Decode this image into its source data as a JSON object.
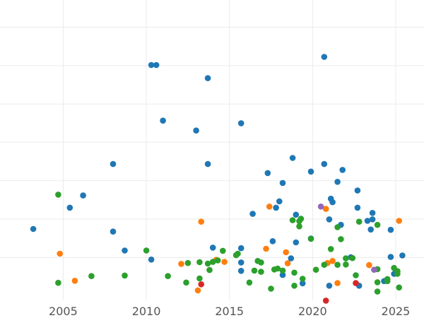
{
  "chart_data": {
    "type": "scatter",
    "title": "",
    "xlabel": "",
    "ylabel": "",
    "xlim": [
      2001.2,
      2026.7
    ],
    "ylim": [
      0,
      100
    ],
    "x_ticks": [
      2005,
      2010,
      2015,
      2020,
      2025
    ],
    "x_tick_labels": [
      "2005",
      "2010",
      "2015",
      "2020",
      "2025"
    ],
    "y_gridlines": [
      13.5,
      26.7,
      39.9,
      53.1,
      66.2,
      79.4,
      92.6
    ],
    "y_tick_labels_visible": false,
    "grid": true,
    "legend": "none",
    "series": [
      {
        "color": "#1f77b4",
        "points": [
          [
            2003.2,
            23.3
          ],
          [
            2005.4,
            30.6
          ],
          [
            2006.2,
            34.8
          ],
          [
            2008.0,
            22.4
          ],
          [
            2008.0,
            45.6
          ],
          [
            2008.7,
            15.9
          ],
          [
            2010.3,
            12.8
          ],
          [
            2010.3,
            79.6
          ],
          [
            2010.6,
            79.6
          ],
          [
            2011.0,
            60.5
          ],
          [
            2013.0,
            57.1
          ],
          [
            2013.7,
            45.6
          ],
          [
            2013.7,
            75.1
          ],
          [
            2014.0,
            16.9
          ],
          [
            2015.7,
            59.6
          ],
          [
            2015.7,
            8.9
          ],
          [
            2015.7,
            11.8
          ],
          [
            2015.7,
            16.7
          ],
          [
            2016.4,
            28.5
          ],
          [
            2017.3,
            42.5
          ],
          [
            2017.6,
            19.1
          ],
          [
            2017.8,
            30.6
          ],
          [
            2018.0,
            32.8
          ],
          [
            2018.2,
            39.1
          ],
          [
            2018.2,
            7.5
          ],
          [
            2018.7,
            13.2
          ],
          [
            2018.8,
            47.7
          ],
          [
            2019.0,
            18.7
          ],
          [
            2019.0,
            28.2
          ],
          [
            2019.4,
            4.6
          ],
          [
            2019.9,
            43.0
          ],
          [
            2019.9,
            20.0
          ],
          [
            2020.7,
            82.4
          ],
          [
            2020.7,
            45.6
          ],
          [
            2021.0,
            26.6
          ],
          [
            2021.0,
            3.8
          ],
          [
            2021.1,
            33.7
          ],
          [
            2021.2,
            32.5
          ],
          [
            2021.5,
            39.5
          ],
          [
            2021.7,
            24.7
          ],
          [
            2021.8,
            43.6
          ],
          [
            2022.3,
            13.6
          ],
          [
            2022.7,
            30.6
          ],
          [
            2022.7,
            36.5
          ],
          [
            2022.8,
            3.8
          ],
          [
            2023.3,
            26.1
          ],
          [
            2023.5,
            23.1
          ],
          [
            2023.6,
            26.6
          ],
          [
            2023.6,
            28.8
          ],
          [
            2024.3,
            5.4
          ],
          [
            2024.7,
            23.0
          ],
          [
            2024.7,
            13.7
          ],
          [
            2024.9,
            7.9
          ],
          [
            2025.4,
            14.2
          ]
        ]
      },
      {
        "color": "#ff7f0e",
        "points": [
          [
            2004.8,
            14.8
          ],
          [
            2005.7,
            5.5
          ],
          [
            2012.1,
            11.3
          ],
          [
            2013.1,
            2.2
          ],
          [
            2013.3,
            25.8
          ],
          [
            2014.2,
            12.7
          ],
          [
            2014.7,
            12.0
          ],
          [
            2017.2,
            16.5
          ],
          [
            2017.4,
            31.0
          ],
          [
            2018.4,
            15.3
          ],
          [
            2018.5,
            11.5
          ],
          [
            2020.8,
            30.2
          ],
          [
            2020.9,
            11.6
          ],
          [
            2021.2,
            12.3
          ],
          [
            2021.5,
            4.7
          ],
          [
            2023.4,
            10.9
          ],
          [
            2025.2,
            26.1
          ]
        ]
      },
      {
        "color": "#2ca02c",
        "points": [
          [
            2004.7,
            4.8
          ],
          [
            2004.7,
            35.1
          ],
          [
            2006.7,
            7.1
          ],
          [
            2008.7,
            7.3
          ],
          [
            2010.0,
            15.9
          ],
          [
            2011.3,
            7.1
          ],
          [
            2012.4,
            4.9
          ],
          [
            2012.5,
            11.6
          ],
          [
            2013.2,
            11.9
          ],
          [
            2013.2,
            6.3
          ],
          [
            2013.7,
            11.4
          ],
          [
            2013.8,
            9.2
          ],
          [
            2014.0,
            12.0
          ],
          [
            2014.3,
            12.5
          ],
          [
            2014.6,
            15.8
          ],
          [
            2015.4,
            14.3
          ],
          [
            2015.5,
            14.8
          ],
          [
            2016.2,
            4.9
          ],
          [
            2016.5,
            9.0
          ],
          [
            2016.7,
            12.3
          ],
          [
            2016.9,
            8.6
          ],
          [
            2016.9,
            11.8
          ],
          [
            2017.5,
            2.8
          ],
          [
            2017.7,
            9.4
          ],
          [
            2017.9,
            9.7
          ],
          [
            2018.2,
            9.0
          ],
          [
            2018.8,
            26.3
          ],
          [
            2018.9,
            3.8
          ],
          [
            2018.9,
            8.3
          ],
          [
            2019.2,
            24.2
          ],
          [
            2019.2,
            26.0
          ],
          [
            2019.3,
            26.8
          ],
          [
            2019.4,
            6.2
          ],
          [
            2019.9,
            19.9
          ],
          [
            2020.2,
            9.3
          ],
          [
            2020.7,
            11.0
          ],
          [
            2021.1,
            16.4
          ],
          [
            2021.5,
            23.9
          ],
          [
            2021.5,
            11.0
          ],
          [
            2021.7,
            19.8
          ],
          [
            2022.0,
            11.1
          ],
          [
            2022.0,
            13.2
          ],
          [
            2022.4,
            13.3
          ],
          [
            2022.6,
            7.4
          ],
          [
            2022.8,
            25.8
          ],
          [
            2023.9,
            1.8
          ],
          [
            2023.9,
            9.5
          ],
          [
            2023.9,
            5.0
          ],
          [
            2023.9,
            24.7
          ],
          [
            2024.5,
            5.4
          ],
          [
            2024.5,
            6.1
          ],
          [
            2024.9,
            9.9
          ],
          [
            2025.1,
            7.9
          ],
          [
            2025.1,
            8.8
          ],
          [
            2025.2,
            3.2
          ]
        ]
      },
      {
        "color": "#d62728",
        "points": [
          [
            2013.3,
            4.3
          ],
          [
            2020.8,
            -1.3
          ],
          [
            2022.6,
            4.7
          ]
        ]
      },
      {
        "color": "#9467bd",
        "points": [
          [
            2020.5,
            31.0
          ],
          [
            2023.7,
            9.3
          ]
        ]
      }
    ]
  }
}
